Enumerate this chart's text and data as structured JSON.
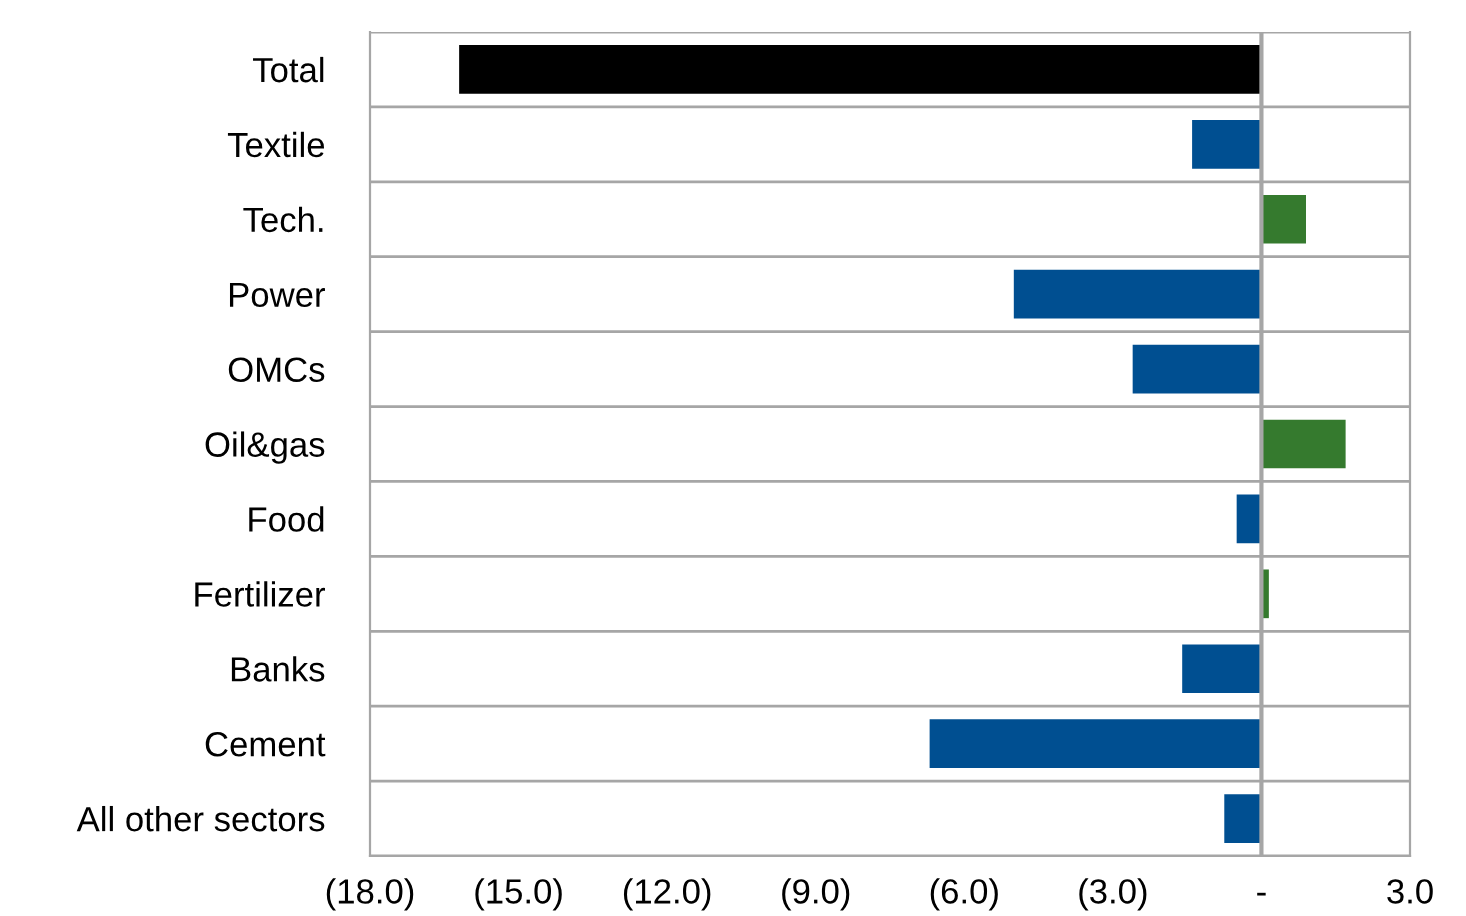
{
  "chart_data": {
    "type": "bar",
    "orientation": "horizontal",
    "categories": [
      "Total",
      "Textile",
      "Tech.",
      "Power",
      "OMCs",
      "Oil&gas",
      "Food",
      "Fertilizer",
      "Banks",
      "Cement",
      "All other sectors"
    ],
    "values": [
      -16.2,
      -1.4,
      0.9,
      -5.0,
      -2.6,
      1.7,
      -0.5,
      0.15,
      -1.6,
      -6.7,
      -0.75
    ],
    "colors": [
      "#000000",
      "#004f91",
      "#357a2e",
      "#004f91",
      "#004f91",
      "#357a2e",
      "#004f91",
      "#357a2e",
      "#004f91",
      "#004f91",
      "#004f91"
    ],
    "xlim": [
      -18,
      3
    ],
    "xticks": [
      {
        "value": -18,
        "label": "(18.0)"
      },
      {
        "value": -15,
        "label": "(15.0)"
      },
      {
        "value": -12,
        "label": "(12.0)"
      },
      {
        "value": -9,
        "label": "(9.0)"
      },
      {
        "value": -6,
        "label": "(6.0)"
      },
      {
        "value": -3,
        "label": "(3.0)"
      },
      {
        "value": 0,
        "label": "-"
      },
      {
        "value": 3,
        "label": "3.0"
      }
    ],
    "grid": "y"
  }
}
